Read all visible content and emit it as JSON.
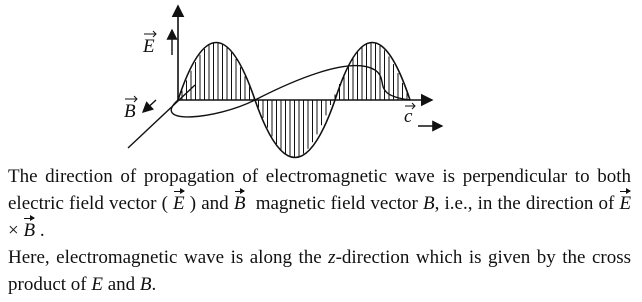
{
  "diagram": {
    "labels": {
      "e_field": "E",
      "b_field": "B",
      "velocity": "c"
    }
  },
  "paragraphs": [
    [
      "The direction of propagation of electromagnetic wave is perpendicular to both electric field vector (",
      "E",
      ") and",
      "B",
      "magnetic field vector",
      "B",
      ", i.e., in the direction of",
      "E",
      "×",
      "B",
      "."
    ],
    [
      "Here, electromagnetic wave is along the",
      "z",
      "-direction which is given by the cross product of",
      "E",
      "and",
      "B",
      "."
    ]
  ]
}
